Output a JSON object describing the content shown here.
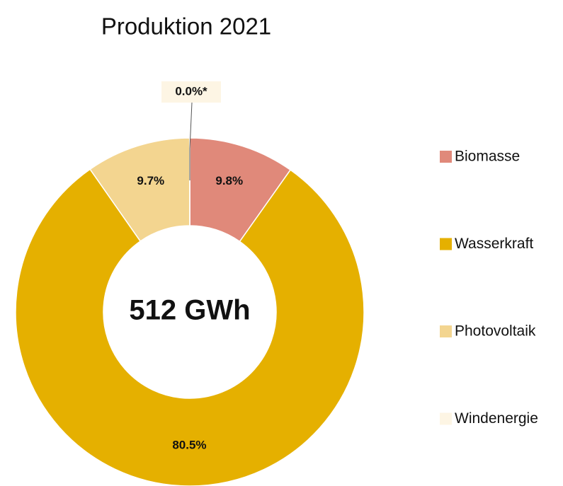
{
  "chart_data": {
    "type": "donut",
    "title": "Produktion 2021",
    "center_label": "512 GWh",
    "categories": [
      "Biomasse",
      "Wasserkraft",
      "Photovoltaik",
      "Windenergie"
    ],
    "values": [
      9.8,
      80.5,
      9.7,
      0.0
    ],
    "value_labels": [
      "9.8%",
      "80.5%",
      "9.7%",
      "0.0%*"
    ],
    "colors": [
      "#e0897a",
      "#e5b000",
      "#f3d590",
      "#fdf5e4"
    ],
    "legend": "right"
  }
}
